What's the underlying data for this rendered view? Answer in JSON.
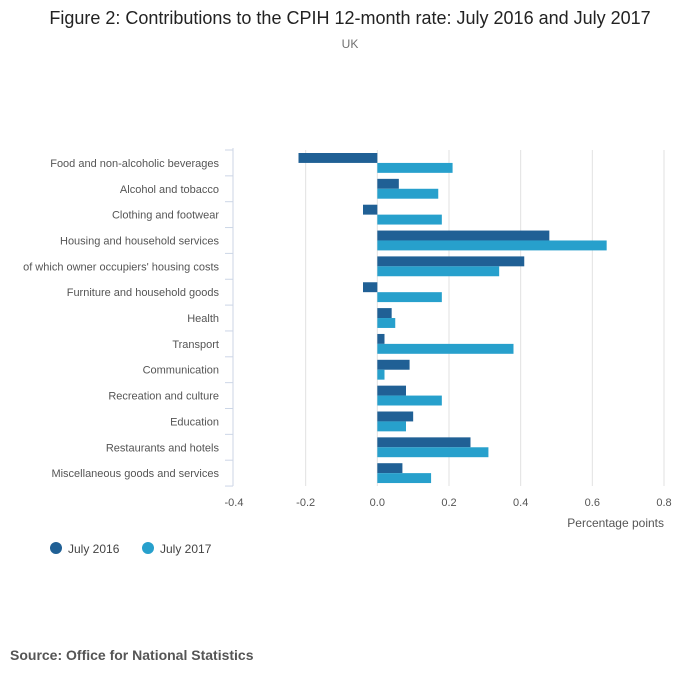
{
  "title": "Figure 2: Contributions to the CPIH 12-month rate: July 2016 and July 2017",
  "subtitle": "UK",
  "source": "Source: Office for National Statistics",
  "chart_data": {
    "type": "bar",
    "orientation": "horizontal",
    "title": "Figure 2: Contributions to the CPIH 12-month rate: July 2016 and July 2017",
    "subtitle": "UK",
    "xlabel": "Percentage points",
    "ylabel": "",
    "xlim": [
      -0.4,
      0.8
    ],
    "xticks": [
      "-0.4",
      "-0.2",
      "0.0",
      "0.2",
      "0.4",
      "0.6",
      "0.8"
    ],
    "xtick_values": [
      -0.4,
      -0.2,
      0,
      0.2,
      0.4,
      0.6,
      0.8
    ],
    "grid": true,
    "legend": "bottom-left",
    "categories": [
      "Food and non-alcoholic beverages",
      "Alcohol and tobacco",
      "Clothing and footwear",
      "Housing and household services",
      "of which owner occupiers' housing costs",
      "Furniture and household goods",
      "Health",
      "Transport",
      "Communication",
      "Recreation and culture",
      "Education",
      "Restaurants and hotels",
      "Miscellaneous goods and services"
    ],
    "series": [
      {
        "name": "July 2016",
        "color": "#206095",
        "values": [
          -0.22,
          0.06,
          -0.04,
          0.48,
          0.41,
          -0.04,
          0.04,
          0.02,
          0.09,
          0.08,
          0.1,
          0.26,
          0.07
        ]
      },
      {
        "name": "July 2017",
        "color": "#27a0cc",
        "values": [
          0.21,
          0.17,
          0.18,
          0.64,
          0.34,
          0.18,
          0.05,
          0.38,
          0.02,
          0.18,
          0.08,
          0.31,
          0.15
        ]
      }
    ]
  }
}
